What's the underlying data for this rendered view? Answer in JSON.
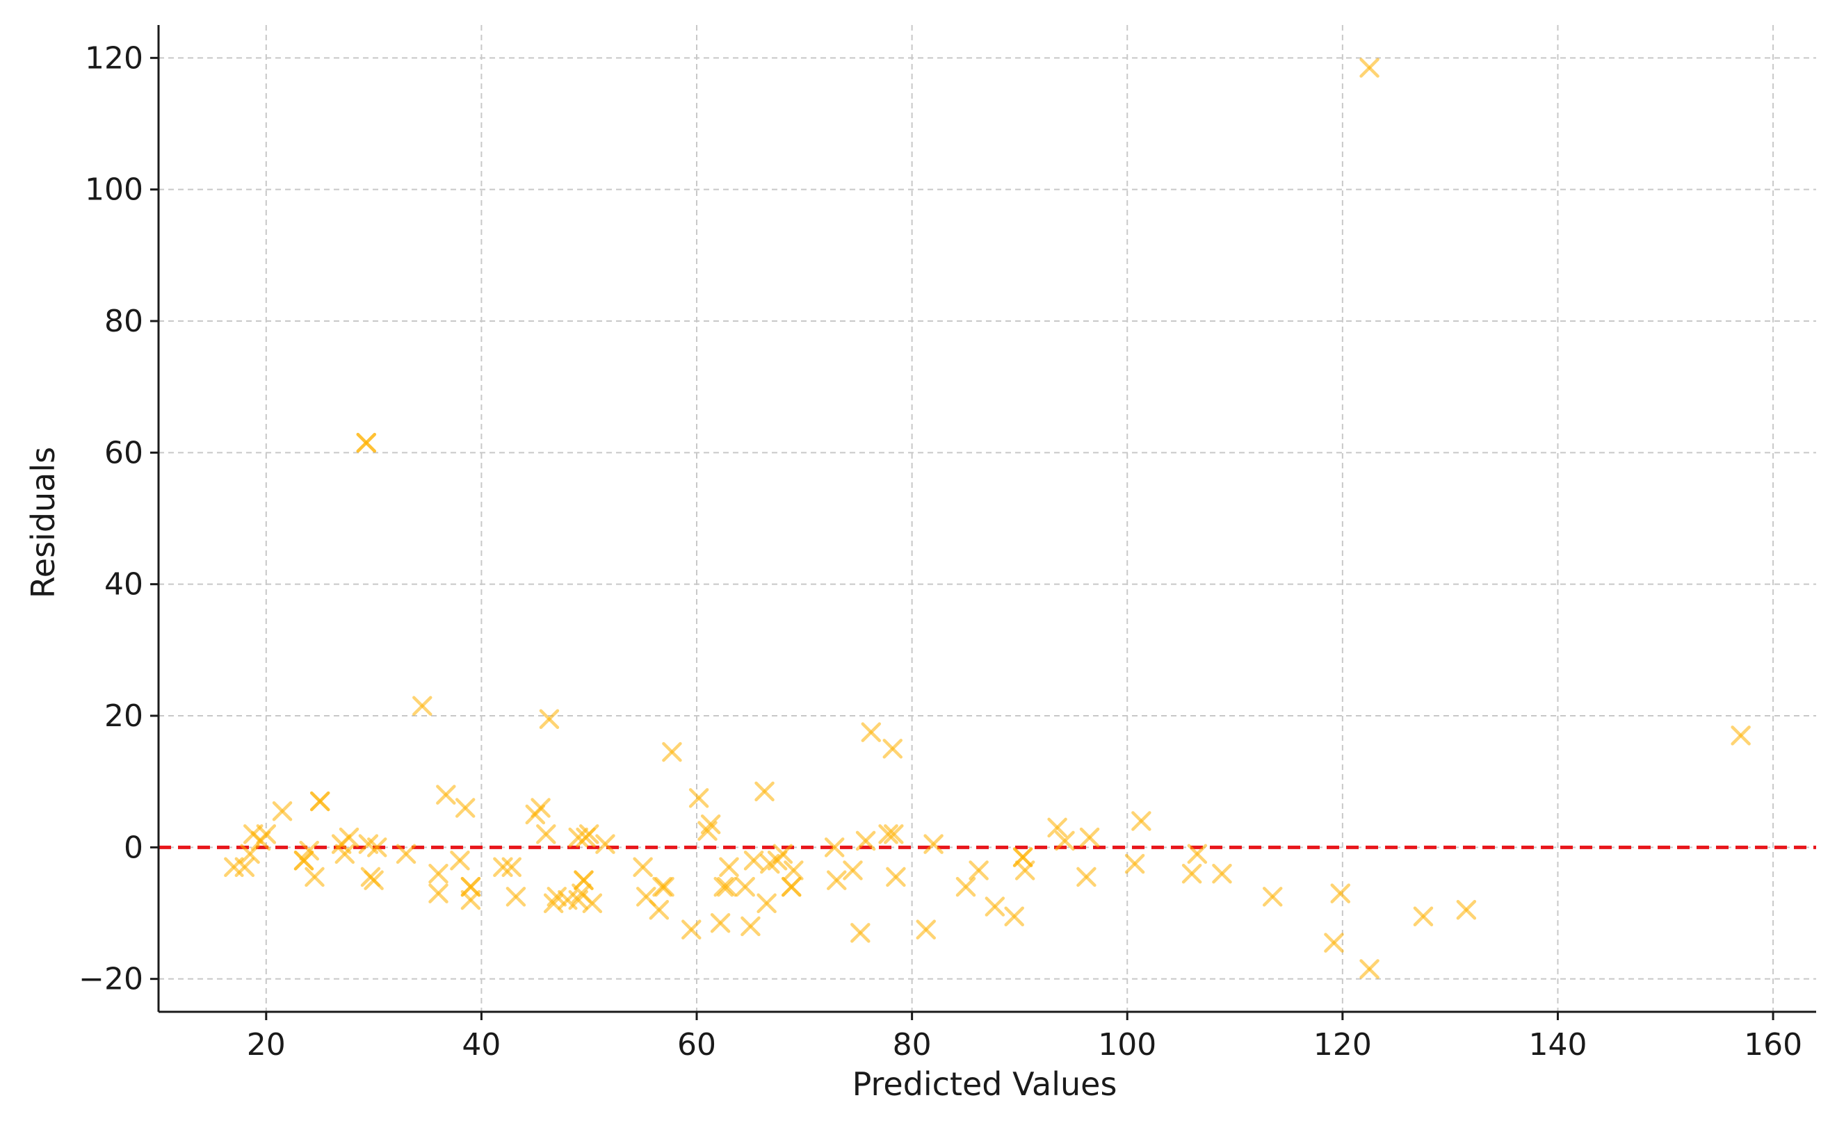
{
  "chart_data": {
    "type": "scatter",
    "title": "",
    "xlabel": "Predicted Values",
    "ylabel": "Residuals",
    "xlim": [
      10,
      164
    ],
    "ylim": [
      -25,
      125
    ],
    "xticks": [
      20,
      40,
      60,
      80,
      100,
      120,
      140,
      160
    ],
    "yticks": [
      -20,
      0,
      20,
      40,
      60,
      80,
      100,
      120
    ],
    "xtick_labels": [
      "20",
      "40",
      "60",
      "80",
      "100",
      "120",
      "140",
      "160"
    ],
    "ytick_labels": [
      "−20",
      "0",
      "20",
      "40",
      "60",
      "80",
      "100",
      "120"
    ],
    "grid": true,
    "marker": "x",
    "marker_color": "#FFB000",
    "marker_opacity": 0.55,
    "reference_line": {
      "y": 0,
      "color": "#E8161B",
      "style": "dashed"
    },
    "points": [
      {
        "x": 17,
        "y": -3
      },
      {
        "x": 18,
        "y": -3
      },
      {
        "x": 18.5,
        "y": -1
      },
      {
        "x": 18.8,
        "y": 2
      },
      {
        "x": 19.5,
        "y": 1
      },
      {
        "x": 20,
        "y": 2
      },
      {
        "x": 21.5,
        "y": 5.5
      },
      {
        "x": 23.5,
        "y": -2
      },
      {
        "x": 23.5,
        "y": -2
      },
      {
        "x": 24,
        "y": -0.5
      },
      {
        "x": 24.5,
        "y": -4.5
      },
      {
        "x": 25,
        "y": 7
      },
      {
        "x": 25,
        "y": 7
      },
      {
        "x": 27,
        "y": 0.5
      },
      {
        "x": 27.3,
        "y": -1
      },
      {
        "x": 27.7,
        "y": 1.5
      },
      {
        "x": 29.3,
        "y": 61.5
      },
      {
        "x": 29.3,
        "y": 61.5
      },
      {
        "x": 29.5,
        "y": 0.5
      },
      {
        "x": 29.7,
        "y": -4.5
      },
      {
        "x": 30,
        "y": -5
      },
      {
        "x": 30.3,
        "y": 0
      },
      {
        "x": 33,
        "y": -1
      },
      {
        "x": 34.5,
        "y": 21.5
      },
      {
        "x": 36,
        "y": -4
      },
      {
        "x": 36,
        "y": -7
      },
      {
        "x": 36.7,
        "y": 8
      },
      {
        "x": 38,
        "y": -2
      },
      {
        "x": 38.5,
        "y": 6
      },
      {
        "x": 39,
        "y": -6
      },
      {
        "x": 39,
        "y": -6
      },
      {
        "x": 39,
        "y": -8
      },
      {
        "x": 42,
        "y": -3
      },
      {
        "x": 42.8,
        "y": -3
      },
      {
        "x": 43.2,
        "y": -7.5
      },
      {
        "x": 45,
        "y": 5
      },
      {
        "x": 45.5,
        "y": 6
      },
      {
        "x": 46,
        "y": 2
      },
      {
        "x": 46.3,
        "y": 19.5
      },
      {
        "x": 46.7,
        "y": -8.5
      },
      {
        "x": 47,
        "y": -7.5
      },
      {
        "x": 48,
        "y": -8
      },
      {
        "x": 49,
        "y": 1.5
      },
      {
        "x": 49,
        "y": -8
      },
      {
        "x": 49.3,
        "y": -7
      },
      {
        "x": 49.5,
        "y": -5
      },
      {
        "x": 49.5,
        "y": -5
      },
      {
        "x": 49.7,
        "y": 1.5
      },
      {
        "x": 50,
        "y": 2
      },
      {
        "x": 50.3,
        "y": -8.5
      },
      {
        "x": 51.5,
        "y": 0.5
      },
      {
        "x": 55,
        "y": -3
      },
      {
        "x": 55.3,
        "y": -7.5
      },
      {
        "x": 56.5,
        "y": -9.5
      },
      {
        "x": 56.8,
        "y": -6
      },
      {
        "x": 57,
        "y": -6
      },
      {
        "x": 57.7,
        "y": 14.5
      },
      {
        "x": 59.5,
        "y": -12.5
      },
      {
        "x": 60.2,
        "y": 7.5
      },
      {
        "x": 61,
        "y": 2.5
      },
      {
        "x": 61.3,
        "y": 3.5
      },
      {
        "x": 62.2,
        "y": -11.5
      },
      {
        "x": 62.5,
        "y": -6
      },
      {
        "x": 62.8,
        "y": -6
      },
      {
        "x": 63,
        "y": -3
      },
      {
        "x": 64.5,
        "y": -6
      },
      {
        "x": 65,
        "y": -12
      },
      {
        "x": 65.3,
        "y": -2
      },
      {
        "x": 66.3,
        "y": 8.5
      },
      {
        "x": 66.5,
        "y": -8.5
      },
      {
        "x": 66.8,
        "y": -2.5
      },
      {
        "x": 67.5,
        "y": -2
      },
      {
        "x": 68,
        "y": -1
      },
      {
        "x": 68.8,
        "y": -6
      },
      {
        "x": 68.8,
        "y": -6
      },
      {
        "x": 69,
        "y": -3.5
      },
      {
        "x": 72.8,
        "y": 0
      },
      {
        "x": 73,
        "y": -5
      },
      {
        "x": 74.5,
        "y": -3.5
      },
      {
        "x": 75.2,
        "y": -13
      },
      {
        "x": 75.7,
        "y": 1
      },
      {
        "x": 76.2,
        "y": 17.5
      },
      {
        "x": 77.8,
        "y": 2
      },
      {
        "x": 78.2,
        "y": 15
      },
      {
        "x": 78.3,
        "y": 2
      },
      {
        "x": 78.5,
        "y": -4.5
      },
      {
        "x": 81.3,
        "y": -12.5
      },
      {
        "x": 82,
        "y": 0.5
      },
      {
        "x": 85,
        "y": -6
      },
      {
        "x": 86.2,
        "y": -3.5
      },
      {
        "x": 87.7,
        "y": -9
      },
      {
        "x": 89.5,
        "y": -10.5
      },
      {
        "x": 90.3,
        "y": -1.5
      },
      {
        "x": 90.3,
        "y": -1.5
      },
      {
        "x": 90.5,
        "y": -3.5
      },
      {
        "x": 93.5,
        "y": 3
      },
      {
        "x": 94.2,
        "y": 1
      },
      {
        "x": 96.2,
        "y": -4.5
      },
      {
        "x": 96.5,
        "y": 1.5
      },
      {
        "x": 100.7,
        "y": -2.5
      },
      {
        "x": 101.3,
        "y": 4
      },
      {
        "x": 106,
        "y": -4
      },
      {
        "x": 106.5,
        "y": -1
      },
      {
        "x": 108.8,
        "y": -4
      },
      {
        "x": 113.5,
        "y": -7.5
      },
      {
        "x": 119.2,
        "y": -14.5
      },
      {
        "x": 119.8,
        "y": -7
      },
      {
        "x": 122.5,
        "y": 118.5
      },
      {
        "x": 122.5,
        "y": -18.5
      },
      {
        "x": 127.5,
        "y": -10.5
      },
      {
        "x": 131.5,
        "y": -9.5
      },
      {
        "x": 157,
        "y": 17
      }
    ]
  }
}
